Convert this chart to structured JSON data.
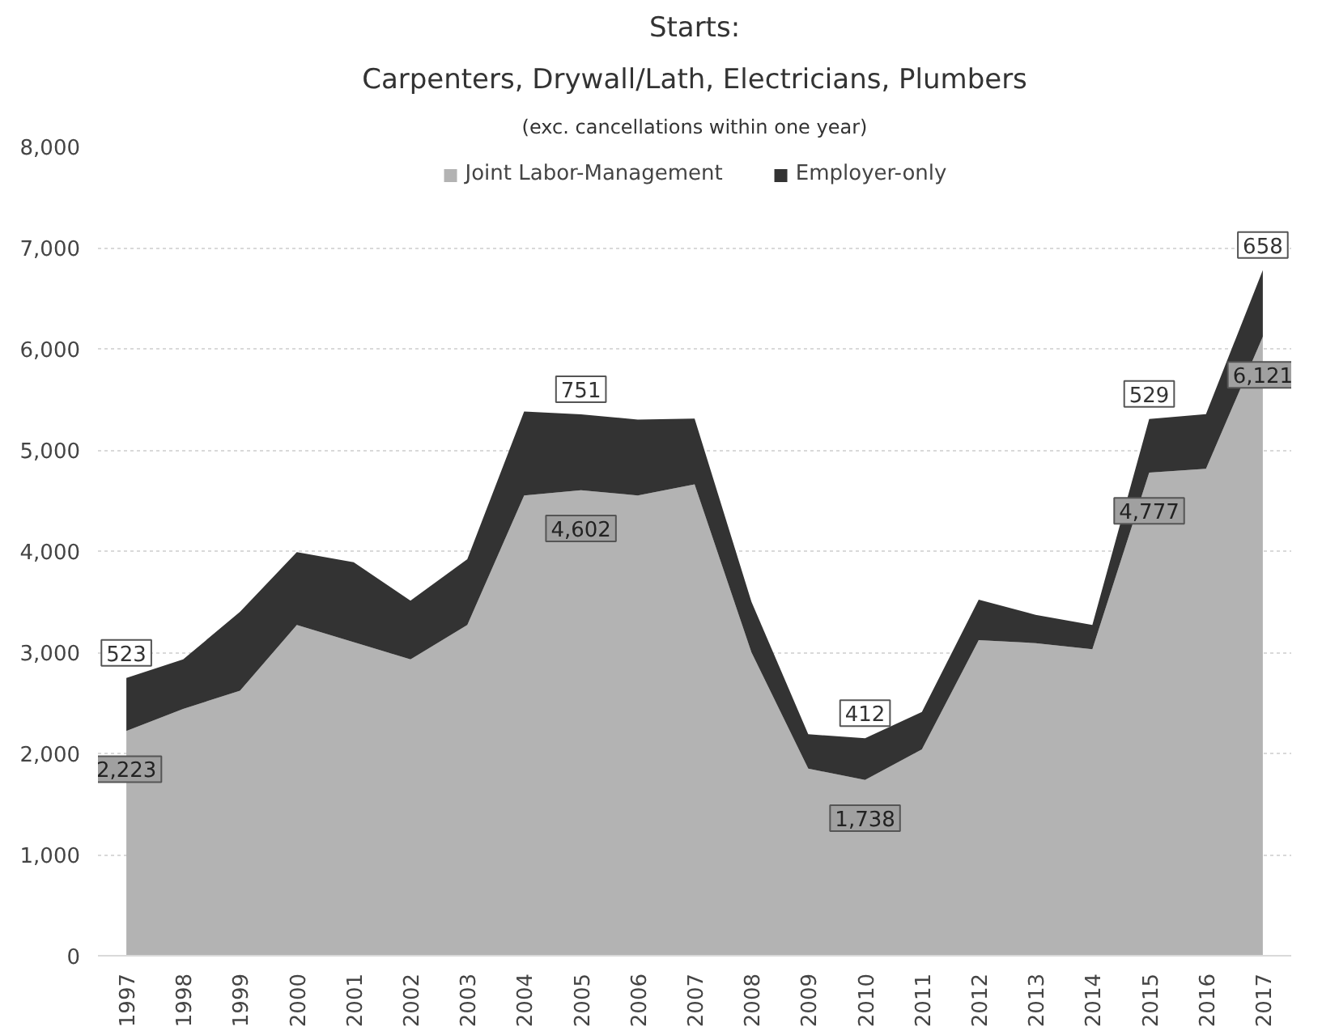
{
  "chart_data": {
    "type": "area",
    "stacked": true,
    "title": "Starts:",
    "subtitle": "Carpenters, Drywall/Lath, Electricians, Plumbers",
    "annotations": [
      "(exc. cancellations within one year)"
    ],
    "categories": [
      "1997",
      "1998",
      "1999",
      "2000",
      "2001",
      "2002",
      "2003",
      "2004",
      "2005",
      "2006",
      "2007",
      "2008",
      "2009",
      "2010",
      "2011",
      "2012",
      "2013",
      "2014",
      "2015",
      "2016",
      "2017"
    ],
    "series": [
      {
        "name": "Joint Labor-Management",
        "color": "#b3b3b3",
        "values": [
          2223,
          2440,
          2620,
          3270,
          3100,
          2930,
          3270,
          4550,
          4602,
          4550,
          4660,
          3000,
          1850,
          1738,
          2040,
          3120,
          3090,
          3030,
          4777,
          4815,
          6121
        ],
        "value_labels": [
          "2,223",
          null,
          null,
          null,
          null,
          null,
          null,
          null,
          "4,602",
          null,
          null,
          null,
          null,
          "1,738",
          null,
          null,
          null,
          null,
          "4,777",
          null,
          "6,121"
        ]
      },
      {
        "name": "Employer-only",
        "color": "#333333",
        "values": [
          523,
          490,
          780,
          720,
          790,
          580,
          650,
          830,
          751,
          750,
          650,
          500,
          340,
          412,
          370,
          400,
          280,
          240,
          529,
          540,
          658
        ],
        "value_labels": [
          "523",
          null,
          null,
          null,
          null,
          null,
          null,
          null,
          "751",
          null,
          null,
          null,
          null,
          "412",
          null,
          null,
          null,
          null,
          "529",
          null,
          "658"
        ]
      }
    ],
    "ylim": [
      0,
      8000
    ],
    "yticks": [
      {
        "value": 0,
        "label": "0"
      },
      {
        "value": 1000,
        "label": "1,000"
      },
      {
        "value": 2000,
        "label": "2,000"
      },
      {
        "value": 3000,
        "label": "3,000"
      },
      {
        "value": 4000,
        "label": "4,000"
      },
      {
        "value": 5000,
        "label": "5,000"
      },
      {
        "value": 6000,
        "label": "6,000"
      },
      {
        "value": 7000,
        "label": "7,000"
      },
      {
        "value": 8000,
        "label": "8,000"
      }
    ],
    "grid": "y",
    "legend": "top"
  }
}
